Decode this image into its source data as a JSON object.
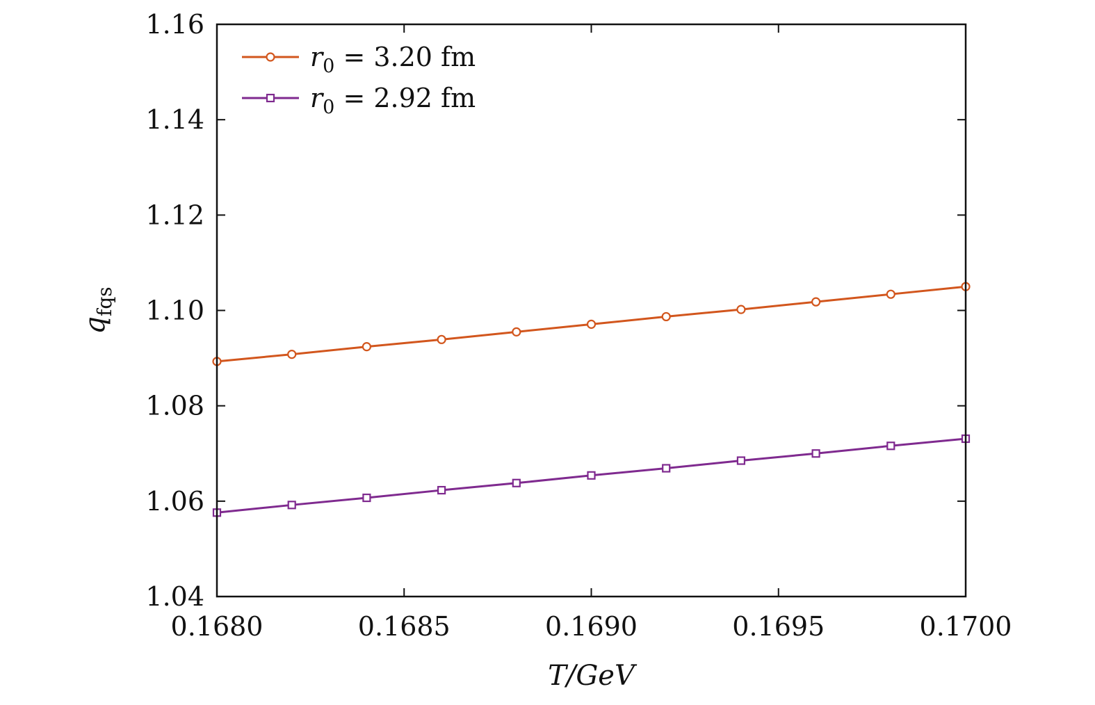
{
  "chart_data": {
    "type": "line",
    "xlabel": "T/GeV",
    "ylabel": "q",
    "ylabel_subscript": "fqs",
    "xlim": [
      0.168,
      0.17
    ],
    "ylim": [
      1.04,
      1.16
    ],
    "x_ticks": [
      "0.1680",
      "0.1685",
      "0.1690",
      "0.1695",
      "0.1700"
    ],
    "x_tick_values": [
      0.168,
      0.1685,
      0.169,
      0.1695,
      0.17
    ],
    "y_ticks": [
      "1.04",
      "1.06",
      "1.08",
      "1.10",
      "1.12",
      "1.14",
      "1.16"
    ],
    "y_tick_values": [
      1.04,
      1.06,
      1.08,
      1.1,
      1.12,
      1.14,
      1.16
    ],
    "legend_position": "top-left",
    "x": [
      0.168,
      0.1682,
      0.1684,
      0.1686,
      0.1688,
      0.169,
      0.1692,
      0.1694,
      0.1696,
      0.1698,
      0.17
    ],
    "series": [
      {
        "name": "r0 = 3.20 fm",
        "label_main": "r",
        "label_sub": "0",
        "label_rest": " = 3.20 fm",
        "color": "#d2561d",
        "marker": "circle",
        "values": [
          1.0893,
          1.0908,
          1.0924,
          1.0939,
          1.0955,
          1.0971,
          1.0987,
          1.1002,
          1.1018,
          1.1034,
          1.105
        ]
      },
      {
        "name": "r0 = 2.92 fm",
        "label_main": "r",
        "label_sub": "0",
        "label_rest": " = 2.92 fm",
        "color": "#7f2a8f",
        "marker": "square",
        "values": [
          1.0576,
          1.0592,
          1.0607,
          1.0623,
          1.0638,
          1.0654,
          1.0669,
          1.0685,
          1.07,
          1.0716,
          1.0731
        ]
      }
    ]
  }
}
